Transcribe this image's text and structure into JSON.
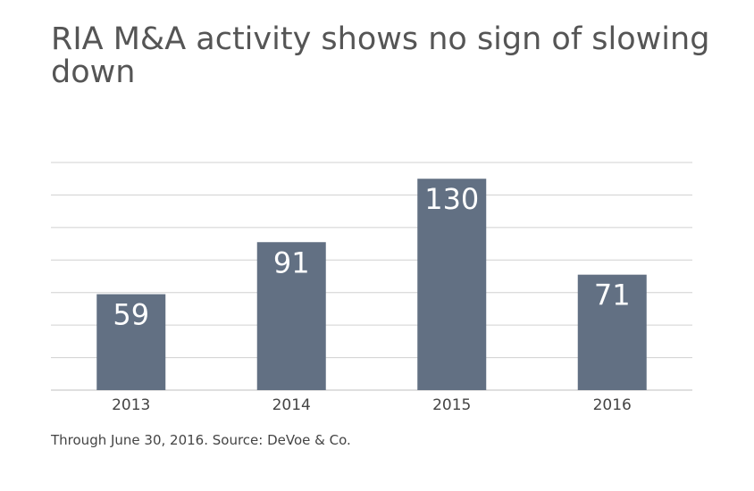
{
  "title": "RIA M&A activity shows no sign of slowing down",
  "source_note": "Through June 30, 2016. Source: DeVoe & Co.",
  "colors": {
    "bar": "#627083",
    "gridline": "#d0d0d0",
    "baseline": "#bfbfbf",
    "label_inside": "#ffffff",
    "tick_label": "#444444",
    "title": "#555555"
  },
  "chart_data": {
    "type": "bar",
    "categories": [
      "2013",
      "2014",
      "2015",
      "2016"
    ],
    "values": [
      59,
      91,
      130,
      71
    ],
    "data_labels": [
      "59",
      "91",
      "130",
      "71"
    ],
    "title": "RIA M&A activity shows no sign of slowing down",
    "xlabel": "",
    "ylabel": "",
    "ylim": [
      0,
      140
    ],
    "gridlines": true,
    "legend": "none"
  }
}
